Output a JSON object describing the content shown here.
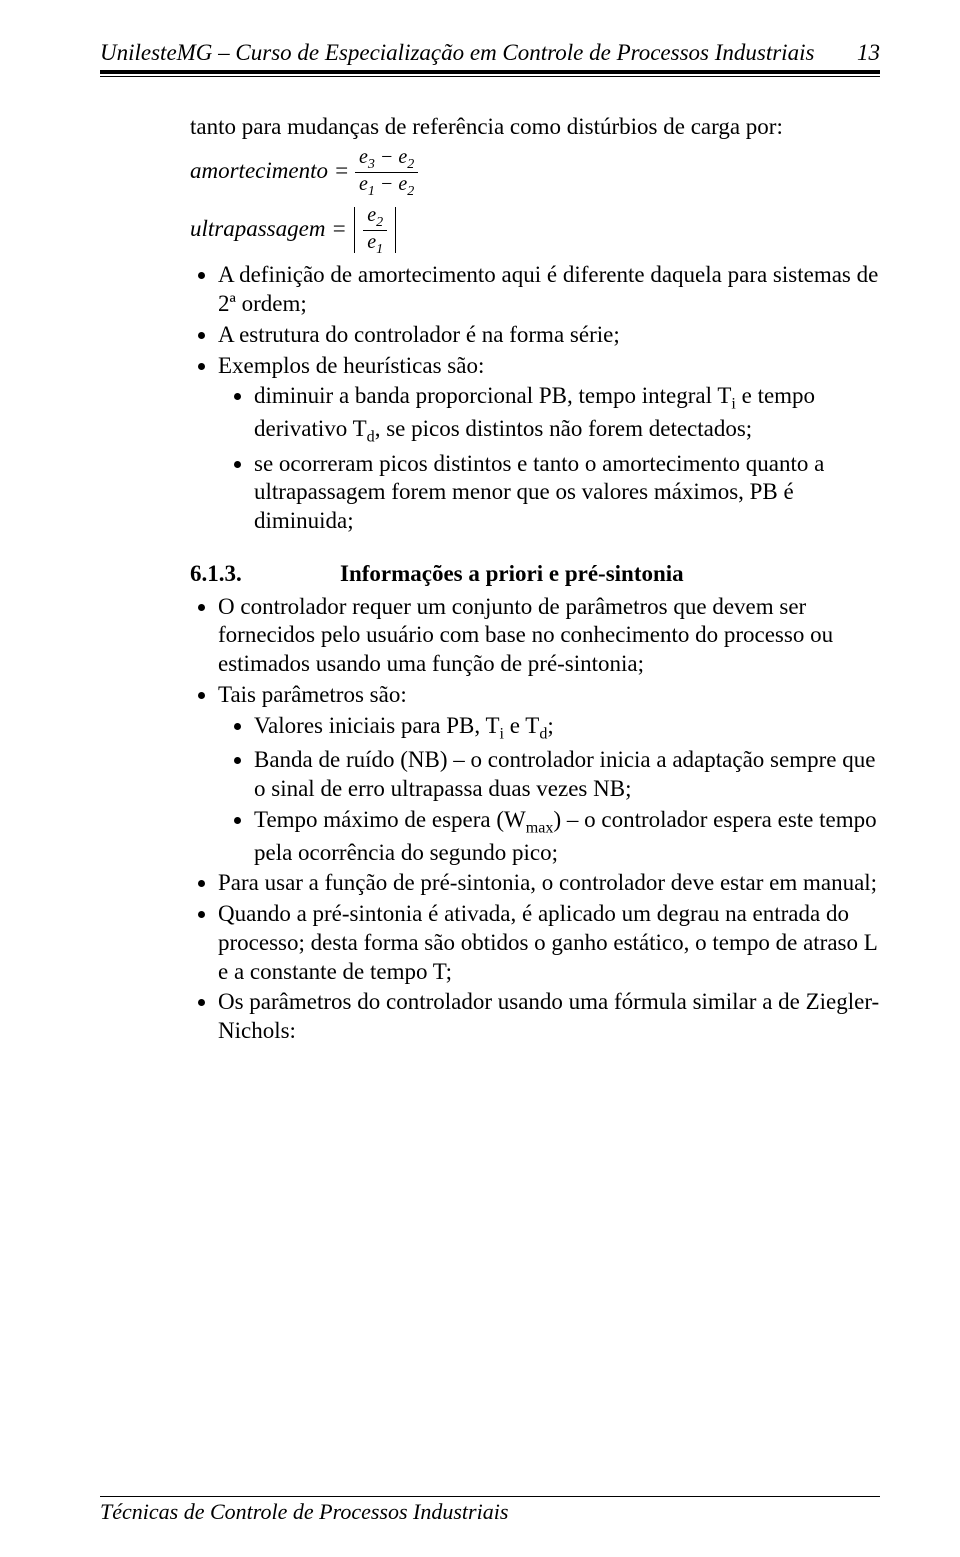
{
  "header": {
    "left": "UnilesteMG – Curso de Especialização em Controle de Processos Industriais",
    "page_no": "13"
  },
  "intro_line": "tanto para mudanças de referência como distúrbios de carga por:",
  "eq1": {
    "lhs": "amortecimento =",
    "num_a": "e",
    "num_a_sub": "3",
    "num_minus": " − ",
    "num_b": "e",
    "num_b_sub": "2",
    "den_a": "e",
    "den_a_sub": "1",
    "den_minus": " − ",
    "den_b": "e",
    "den_b_sub": "2"
  },
  "eq2": {
    "lhs": "ultrapassagem =",
    "num_a": "e",
    "num_a_sub": "2",
    "den_a": "e",
    "den_a_sub": "1"
  },
  "bullets_a": [
    "A definição de amortecimento aqui é diferente daquela para sistemas de 2ª ordem;",
    "A estrutura do controlador é na forma série;",
    "Exemplos de heurísticas são:"
  ],
  "bullets_a_sub": [
    "diminuir a banda proporcional PB, tempo integral Tᵢ e tempo derivativo T_d, se picos distintos não forem detectados;",
    "se ocorreram picos distintos e tanto o amortecimento quanto a ultrapassagem forem menor que os valores máximos, PB é diminuida;"
  ],
  "sub_richtext": {
    "t0a": "diminuir a banda proporcional PB, tempo integral T",
    "t0b": "i",
    "t0c": " e tempo derivativo T",
    "t0d": "d",
    "t0e": ", se picos distintos não forem detectados;"
  },
  "section": {
    "num": "6.1.3.",
    "title": "Informações a priori e pré-sintonia"
  },
  "bullets_b": {
    "b0": "O controlador requer um conjunto de parâmetros que devem ser fornecidos pelo usuário com base no conhecimento do processo ou estimados usando uma função de pré-sintonia;",
    "b1": "Tais parâmetros são:",
    "b1s0a": "Valores iniciais para PB, T",
    "b1s0b": "i",
    "b1s0c": " e T",
    "b1s0d": "d",
    "b1s0e": ";",
    "b1s1": "Banda de ruído (NB) – o controlador inicia a adaptação sempre que o sinal de erro ultrapassa duas vezes NB;",
    "b1s2a": "Tempo máximo de espera (W",
    "b1s2b": "max",
    "b1s2c": ") – o controlador espera este tempo pela ocorrência do segundo pico;",
    "b2": "Para usar a função de pré-sintonia, o controlador deve estar em manual;",
    "b3": "Quando a pré-sintonia é ativada, é aplicado um degrau na entrada do processo; desta forma são obtidos o ganho estático, o tempo de atraso L e a constante de tempo T;",
    "b4": "Os parâmetros do controlador usando uma fórmula similar a de Ziegler-Nichols:"
  },
  "footer": "Técnicas de Controle de Processos Industriais"
}
